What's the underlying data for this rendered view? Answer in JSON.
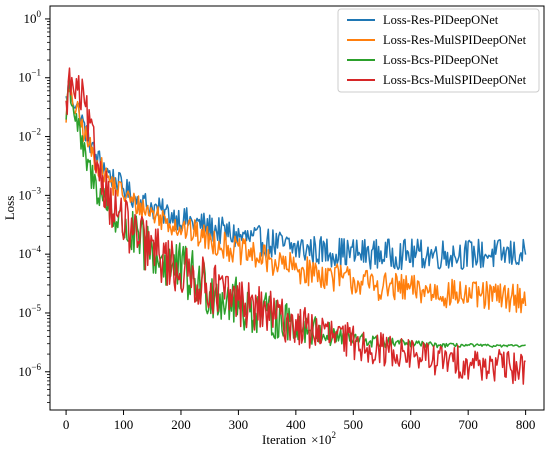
{
  "chart_data": {
    "type": "line",
    "xlabel": "Iteration",
    "xlabel_multiplier": "×10",
    "xlabel_exponent": "2",
    "ylabel": "Loss",
    "xlim": [
      -28,
      832
    ],
    "ylim_log10": [
      -6.65,
      0.22
    ],
    "y_scale": "log",
    "x_ticks": [
      0,
      100,
      200,
      300,
      400,
      500,
      600,
      700,
      800
    ],
    "y_ticks": [
      {
        "exp": 0,
        "base": "10",
        "sup": "0"
      },
      {
        "exp": -1,
        "base": "10",
        "sup": "−1"
      },
      {
        "exp": -2,
        "base": "10",
        "sup": "−2"
      },
      {
        "exp": -3,
        "base": "10",
        "sup": "−3"
      },
      {
        "exp": -4,
        "base": "10",
        "sup": "−4"
      },
      {
        "exp": -5,
        "base": "10",
        "sup": "−5"
      },
      {
        "exp": -6,
        "base": "10",
        "sup": "−6"
      }
    ],
    "grid": false,
    "legend_position": "top-right",
    "series": [
      {
        "name": "Loss-Res-PIDeepONet",
        "color": "#1f77b4",
        "x": [
          0,
          5,
          10,
          20,
          30,
          50,
          80,
          120,
          160,
          200,
          250,
          300,
          350,
          400,
          450,
          500,
          550,
          600,
          650,
          700,
          750,
          800
        ],
        "log10": [
          -1.4,
          -1.1,
          -1.3,
          -1.5,
          -1.8,
          -2.3,
          -2.7,
          -3.05,
          -3.25,
          -3.4,
          -3.55,
          -3.7,
          -3.8,
          -3.9,
          -3.95,
          -3.98,
          -4.0,
          -4.0,
          -4.0,
          -4.0,
          -4.0,
          -4.0
        ],
        "noise": [
          0.2,
          0.2,
          0.2,
          0.2,
          0.2,
          0.2,
          0.2,
          0.2,
          0.22,
          0.22,
          0.24,
          0.25,
          0.26,
          0.26,
          0.26,
          0.26,
          0.26,
          0.26,
          0.26,
          0.26,
          0.26,
          0.26
        ]
      },
      {
        "name": "Loss-Res-MulSPIDeepONet",
        "color": "#ff7f0e",
        "x": [
          0,
          5,
          10,
          20,
          30,
          50,
          80,
          120,
          160,
          200,
          250,
          300,
          350,
          400,
          450,
          500,
          550,
          600,
          650,
          700,
          750,
          800
        ],
        "log10": [
          -1.6,
          -1.2,
          -1.4,
          -1.6,
          -1.9,
          -2.4,
          -2.8,
          -3.15,
          -3.35,
          -3.55,
          -3.75,
          -3.95,
          -4.1,
          -4.25,
          -4.35,
          -4.45,
          -4.55,
          -4.6,
          -4.65,
          -4.7,
          -4.72,
          -4.75
        ],
        "noise": [
          0.2,
          0.2,
          0.2,
          0.2,
          0.2,
          0.2,
          0.2,
          0.2,
          0.22,
          0.22,
          0.24,
          0.24,
          0.25,
          0.25,
          0.25,
          0.25,
          0.25,
          0.25,
          0.25,
          0.25,
          0.25,
          0.25
        ]
      },
      {
        "name": "Loss-Bcs-PIDeepONet",
        "color": "#2ca02c",
        "x": [
          0,
          5,
          10,
          20,
          30,
          50,
          80,
          120,
          160,
          200,
          250,
          300,
          350,
          400,
          450,
          500,
          550,
          600,
          650,
          700,
          750,
          800
        ],
        "log10": [
          -1.7,
          -1.0,
          -1.4,
          -1.8,
          -2.3,
          -2.8,
          -3.3,
          -3.75,
          -4.05,
          -4.3,
          -4.6,
          -4.85,
          -5.05,
          -5.2,
          -5.35,
          -5.45,
          -5.5,
          -5.52,
          -5.55,
          -5.55,
          -5.56,
          -5.56
        ],
        "noise": [
          0.22,
          0.22,
          0.22,
          0.24,
          0.26,
          0.3,
          0.36,
          0.44,
          0.48,
          0.5,
          0.48,
          0.44,
          0.38,
          0.3,
          0.22,
          0.14,
          0.1,
          0.06,
          0.04,
          0.03,
          0.02,
          0.02
        ]
      },
      {
        "name": "Loss-Bcs-MulSPIDeepONet",
        "color": "#d62728",
        "x": [
          0,
          5,
          10,
          20,
          30,
          50,
          80,
          120,
          160,
          200,
          250,
          300,
          350,
          400,
          450,
          500,
          550,
          600,
          650,
          700,
          750,
          800
        ],
        "log10": [
          -1.6,
          -1.0,
          -1.2,
          -1.25,
          -1.4,
          -2.3,
          -3.2,
          -3.7,
          -4.0,
          -4.3,
          -4.55,
          -4.8,
          -5.0,
          -5.2,
          -5.35,
          -5.5,
          -5.62,
          -5.7,
          -5.8,
          -5.85,
          -5.9,
          -5.95
        ],
        "noise": [
          0.3,
          0.3,
          0.3,
          0.32,
          0.36,
          0.4,
          0.42,
          0.44,
          0.46,
          0.46,
          0.44,
          0.42,
          0.4,
          0.36,
          0.32,
          0.3,
          0.28,
          0.28,
          0.28,
          0.28,
          0.28,
          0.28
        ]
      }
    ]
  }
}
